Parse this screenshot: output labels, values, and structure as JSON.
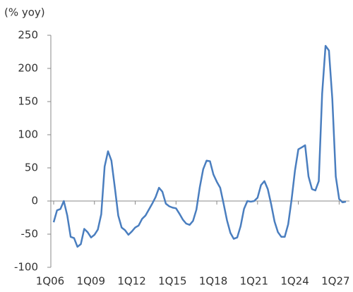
{
  "chart_data": {
    "type": "line",
    "y_axis_label": "(% yoy)",
    "categories": [
      "1Q06",
      null,
      null,
      null,
      null,
      null,
      null,
      null,
      null,
      null,
      null,
      null,
      "1Q09",
      null,
      null,
      null,
      null,
      null,
      null,
      null,
      null,
      null,
      null,
      null,
      "1Q12",
      null,
      null,
      null,
      null,
      null,
      null,
      null,
      null,
      null,
      null,
      null,
      "1Q15",
      null,
      null,
      null,
      null,
      null,
      null,
      null,
      null,
      null,
      null,
      null,
      "1Q18",
      null,
      null,
      null,
      null,
      null,
      null,
      null,
      null,
      null,
      null,
      null,
      "1Q21",
      null,
      null,
      null,
      null,
      null,
      null,
      null,
      null,
      null,
      null,
      null,
      "1Q24",
      null,
      null,
      null,
      null,
      null,
      null,
      null,
      null,
      null,
      null,
      null,
      "1Q27",
      null,
      null
    ],
    "series": [
      {
        "color": "#4a7ebf",
        "values": [
          -32,
          -14,
          -12,
          0,
          -22,
          -54,
          -56,
          -69,
          -65,
          -42,
          -47,
          -55,
          -51,
          -43,
          -20,
          52,
          75,
          61,
          20,
          -22,
          -40,
          -44,
          -51,
          -46,
          -40,
          -37,
          -27,
          -22,
          -13,
          -4,
          6,
          20,
          14,
          -4,
          -8,
          -10,
          -11,
          -19,
          -28,
          -34,
          -36,
          -30,
          -13,
          21,
          48,
          61,
          60,
          40,
          29,
          20,
          -4,
          -29,
          -48,
          -57,
          -55,
          -38,
          -12,
          0,
          -1,
          0,
          5,
          24,
          30,
          18,
          -5,
          -31,
          -47,
          -54,
          -54,
          -35,
          2,
          46,
          78,
          81,
          84,
          37,
          18,
          16,
          30,
          162,
          234,
          227,
          154,
          37,
          3,
          -2,
          -1
        ]
      }
    ],
    "ylim": [
      -100,
      250
    ],
    "yticks": [
      -100,
      -50,
      0,
      50,
      100,
      150,
      200,
      250
    ]
  }
}
